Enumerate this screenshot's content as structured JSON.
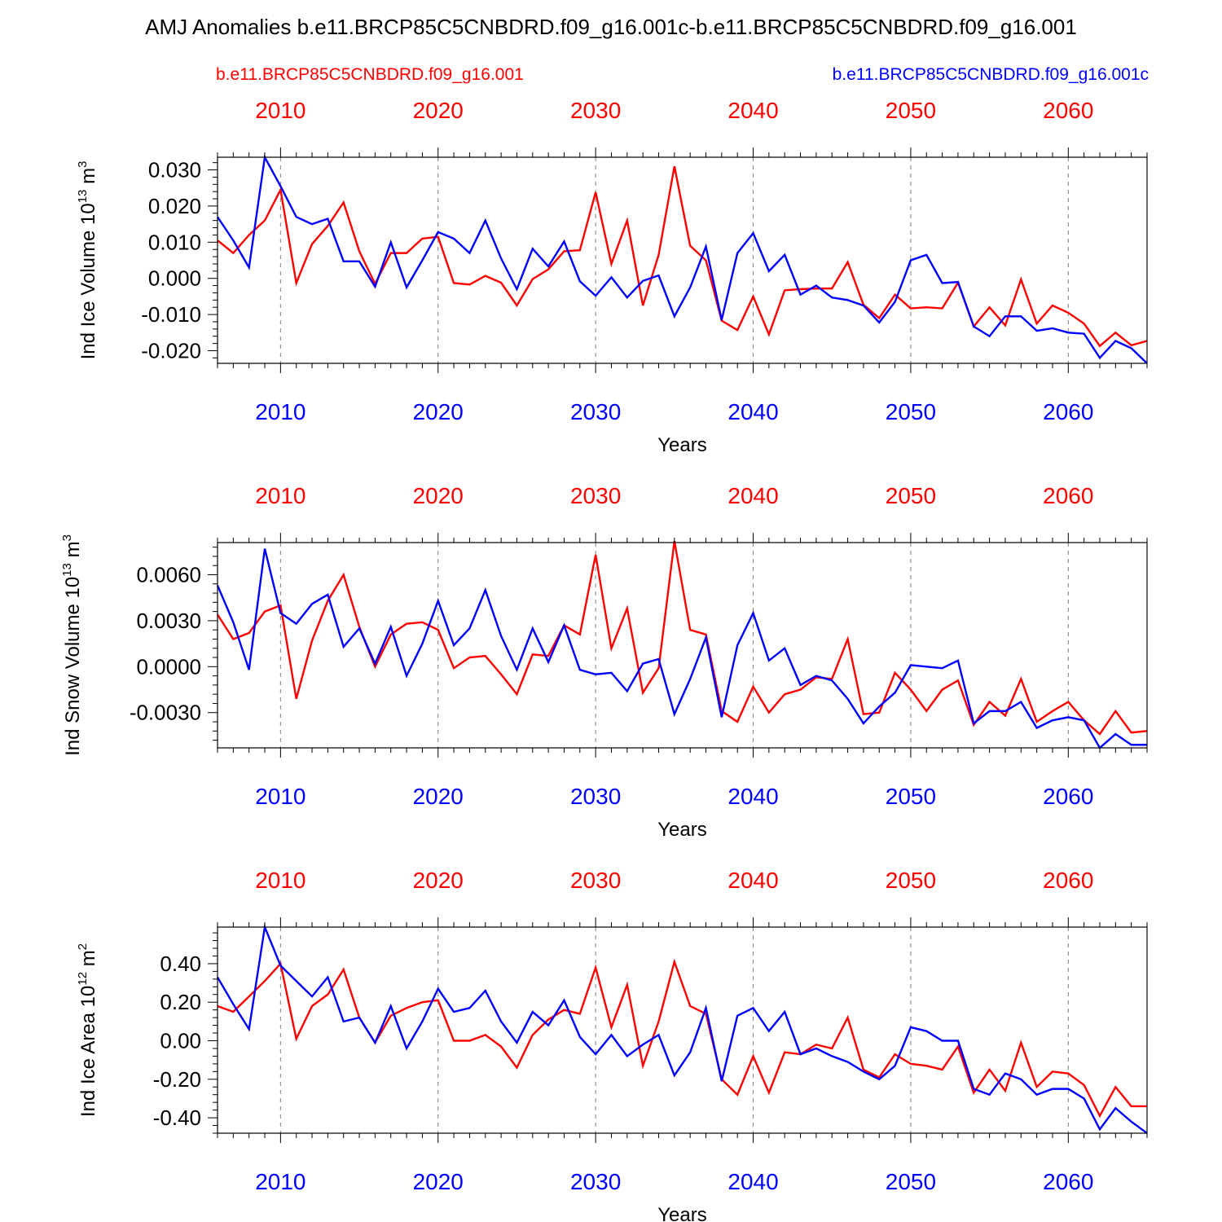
{
  "title": "AMJ Anomalies b.e11.BRCP85C5CNBDRD.f09_g16.001c-b.e11.BRCP85C5CNBDRD.f09_g16.001",
  "legend": {
    "red_label": "b.e11.BRCP85C5CNBDRD.f09_g16.001",
    "blue_label": "b.e11.BRCP85C5CNBDRD.f09_g16.001c"
  },
  "colors": {
    "red": "#ff0000",
    "blue": "#0000ff"
  },
  "chart_data": [
    {
      "type": "line",
      "ylabel": "Ind Ice Volume 10",
      "ylabel_exp": "13",
      "ylabel_unit": " m",
      "ylabel_unit_exp": "3",
      "xlabel": "Years",
      "xlim": [
        2006,
        2065
      ],
      "ylim": [
        -0.0235,
        0.0335
      ],
      "yticks": [
        -0.02,
        -0.01,
        0.0,
        0.01,
        0.02,
        0.03
      ],
      "ytick_labels": [
        "-0.020",
        "-0.010",
        "0.000",
        "0.010",
        "0.020",
        "0.030"
      ],
      "xticks": [
        2010,
        2020,
        2030,
        2040,
        2050,
        2060
      ],
      "xtick_labels": [
        "2010",
        "2020",
        "2030",
        "2040",
        "2050",
        "2060"
      ],
      "series": [
        {
          "name": "b.e11.BRCP85C5CNBDRD.f09_g16.001",
          "color": "#ff0000",
          "start_year": 2006,
          "values": [
            0.0105,
            0.007,
            0.012,
            0.016,
            0.0245,
            -0.0013,
            0.0095,
            0.0145,
            0.021,
            0.0075,
            -0.0015,
            0.007,
            0.007,
            0.011,
            0.0115,
            -0.0013,
            -0.0017,
            0.0007,
            -0.0012,
            -0.0075,
            -0.0002,
            0.0025,
            0.0075,
            0.0078,
            0.0238,
            0.004,
            0.016,
            -0.0075,
            0.0065,
            0.031,
            0.009,
            0.005,
            -0.0117,
            -0.0143,
            -0.005,
            -0.0155,
            -0.0033,
            -0.003,
            -0.0028,
            -0.0028,
            0.0045,
            -0.0073,
            -0.011,
            -0.0045,
            -0.0083,
            -0.008,
            -0.0083,
            -0.0012,
            -0.0133,
            -0.008,
            -0.013,
            -0.0003,
            -0.0125,
            -0.0075,
            -0.0095,
            -0.0125,
            -0.0187,
            -0.015,
            -0.0185,
            -0.0173
          ]
        },
        {
          "name": "b.e11.BRCP85C5CNBDRD.f09_g16.001c",
          "color": "#0000ff",
          "start_year": 2006,
          "values": [
            0.017,
            0.0105,
            0.003,
            0.0335,
            0.0255,
            0.017,
            0.015,
            0.0165,
            0.0047,
            0.0047,
            -0.0023,
            0.01,
            -0.0025,
            0.005,
            0.0128,
            0.011,
            0.007,
            0.016,
            0.0055,
            -0.003,
            0.0082,
            0.0033,
            0.0102,
            -0.0008,
            -0.0048,
            0.0003,
            -0.0053,
            -0.0007,
            0.0008,
            -0.0105,
            -0.0025,
            0.0088,
            -0.0115,
            0.007,
            0.0125,
            0.002,
            0.0065,
            -0.0045,
            -0.002,
            -0.0053,
            -0.006,
            -0.0075,
            -0.0122,
            -0.0065,
            0.005,
            0.0065,
            -0.0013,
            -0.001,
            -0.0133,
            -0.016,
            -0.0105,
            -0.0105,
            -0.0145,
            -0.0138,
            -0.015,
            -0.0153,
            -0.022,
            -0.0173,
            -0.0193,
            -0.0235
          ]
        }
      ]
    },
    {
      "type": "line",
      "ylabel": "Ind Snow Volume 10",
      "ylabel_exp": "13",
      "ylabel_unit": " m",
      "ylabel_unit_exp": "3",
      "xlabel": "Years",
      "xlim": [
        2006,
        2065
      ],
      "ylim": [
        -0.0053,
        0.0081
      ],
      "yticks": [
        -0.003,
        0.0,
        0.003,
        0.006
      ],
      "ytick_labels": [
        "-0.0030",
        "0.0000",
        "0.0030",
        "0.0060"
      ],
      "xticks": [
        2010,
        2020,
        2030,
        2040,
        2050,
        2060
      ],
      "xtick_labels": [
        "2010",
        "2020",
        "2030",
        "2040",
        "2050",
        "2060"
      ],
      "series": [
        {
          "name": "b.e11.BRCP85C5CNBDRD.f09_g16.001",
          "color": "#ff0000",
          "start_year": 2006,
          "values": [
            0.0034,
            0.0018,
            0.0022,
            0.0036,
            0.004,
            -0.0021,
            0.0017,
            0.0043,
            0.006,
            0.0026,
            0.0,
            0.0021,
            0.0028,
            0.0029,
            0.0024,
            -0.0001,
            0.0006,
            0.0007,
            -0.0005,
            -0.0018,
            0.0008,
            0.0007,
            0.0027,
            0.0021,
            0.0073,
            0.0012,
            0.0038,
            -0.0017,
            -0.0001,
            0.0082,
            0.0024,
            0.0021,
            -0.0029,
            -0.0036,
            -0.0013,
            -0.003,
            -0.0018,
            -0.0015,
            -0.0007,
            -0.0008,
            0.0018,
            -0.0031,
            -0.003,
            -0.0004,
            -0.0015,
            -0.0029,
            -0.0015,
            -0.0009,
            -0.0038,
            -0.0023,
            -0.0032,
            -0.0008,
            -0.0036,
            -0.0029,
            -0.0023,
            -0.0035,
            -0.0044,
            -0.0029,
            -0.0043,
            -0.0042
          ]
        },
        {
          "name": "b.e11.BRCP85C5CNBDRD.f09_g16.001c",
          "color": "#0000ff",
          "start_year": 2006,
          "values": [
            0.0053,
            0.0029,
            -0.0002,
            0.0077,
            0.0035,
            0.0028,
            0.0041,
            0.0047,
            0.0013,
            0.0025,
            0.0002,
            0.0026,
            -0.0006,
            0.0015,
            0.0043,
            0.0014,
            0.0025,
            0.005,
            0.002,
            -0.0002,
            0.0025,
            0.0003,
            0.0027,
            -0.0002,
            -0.0005,
            -0.0004,
            -0.0016,
            0.0002,
            0.0005,
            -0.0031,
            -0.0008,
            0.0019,
            -0.0033,
            0.0014,
            0.0035,
            0.0004,
            0.0012,
            -0.0012,
            -0.0006,
            -0.0009,
            -0.0021,
            -0.0037,
            -0.0026,
            -0.0017,
            0.0001,
            0.0,
            -0.0001,
            0.0004,
            -0.0037,
            -0.0029,
            -0.0029,
            -0.0023,
            -0.004,
            -0.0035,
            -0.0033,
            -0.0035,
            -0.0053,
            -0.0044,
            -0.0051,
            -0.0051
          ]
        }
      ]
    },
    {
      "type": "line",
      "ylabel": "Ind Ice Area 10",
      "ylabel_exp": "12",
      "ylabel_unit": " m",
      "ylabel_unit_exp": "2",
      "xlabel": "Years",
      "xlim": [
        2006,
        2065
      ],
      "ylim": [
        -0.48,
        0.59
      ],
      "yticks": [
        -0.4,
        -0.2,
        0.0,
        0.2,
        0.4
      ],
      "ytick_labels": [
        "-0.40",
        "-0.20",
        "0.00",
        "0.20",
        "0.40"
      ],
      "xticks": [
        2010,
        2020,
        2030,
        2040,
        2050,
        2060
      ],
      "xtick_labels": [
        "2010",
        "2020",
        "2030",
        "2040",
        "2050",
        "2060"
      ],
      "series": [
        {
          "name": "b.e11.BRCP85C5CNBDRD.f09_g16.001",
          "color": "#ff0000",
          "start_year": 2006,
          "values": [
            0.18,
            0.15,
            0.23,
            0.31,
            0.4,
            0.01,
            0.18,
            0.24,
            0.37,
            0.12,
            -0.01,
            0.13,
            0.17,
            0.2,
            0.21,
            0.0,
            0.0,
            0.03,
            -0.03,
            -0.14,
            0.03,
            0.11,
            0.16,
            0.14,
            0.38,
            0.07,
            0.29,
            -0.13,
            0.1,
            0.41,
            0.18,
            0.14,
            -0.2,
            -0.28,
            -0.08,
            -0.27,
            -0.06,
            -0.07,
            -0.02,
            -0.04,
            0.12,
            -0.15,
            -0.19,
            -0.07,
            -0.12,
            -0.13,
            -0.15,
            -0.03,
            -0.27,
            -0.15,
            -0.26,
            -0.01,
            -0.24,
            -0.16,
            -0.17,
            -0.23,
            -0.39,
            -0.24,
            -0.34,
            -0.34
          ]
        },
        {
          "name": "b.e11.BRCP85C5CNBDRD.f09_g16.001c",
          "color": "#0000ff",
          "start_year": 2006,
          "values": [
            0.33,
            0.19,
            0.06,
            0.59,
            0.39,
            0.31,
            0.23,
            0.33,
            0.1,
            0.12,
            -0.01,
            0.18,
            -0.04,
            0.1,
            0.27,
            0.15,
            0.17,
            0.26,
            0.1,
            -0.01,
            0.15,
            0.08,
            0.21,
            0.02,
            -0.07,
            0.03,
            -0.08,
            -0.02,
            0.03,
            -0.18,
            -0.06,
            0.17,
            -0.21,
            0.13,
            0.17,
            0.05,
            0.15,
            -0.07,
            -0.04,
            -0.08,
            -0.11,
            -0.16,
            -0.2,
            -0.13,
            0.07,
            0.05,
            0.0,
            0.0,
            -0.25,
            -0.28,
            -0.17,
            -0.2,
            -0.28,
            -0.25,
            -0.25,
            -0.3,
            -0.46,
            -0.35,
            -0.42,
            -0.48
          ]
        }
      ]
    }
  ]
}
